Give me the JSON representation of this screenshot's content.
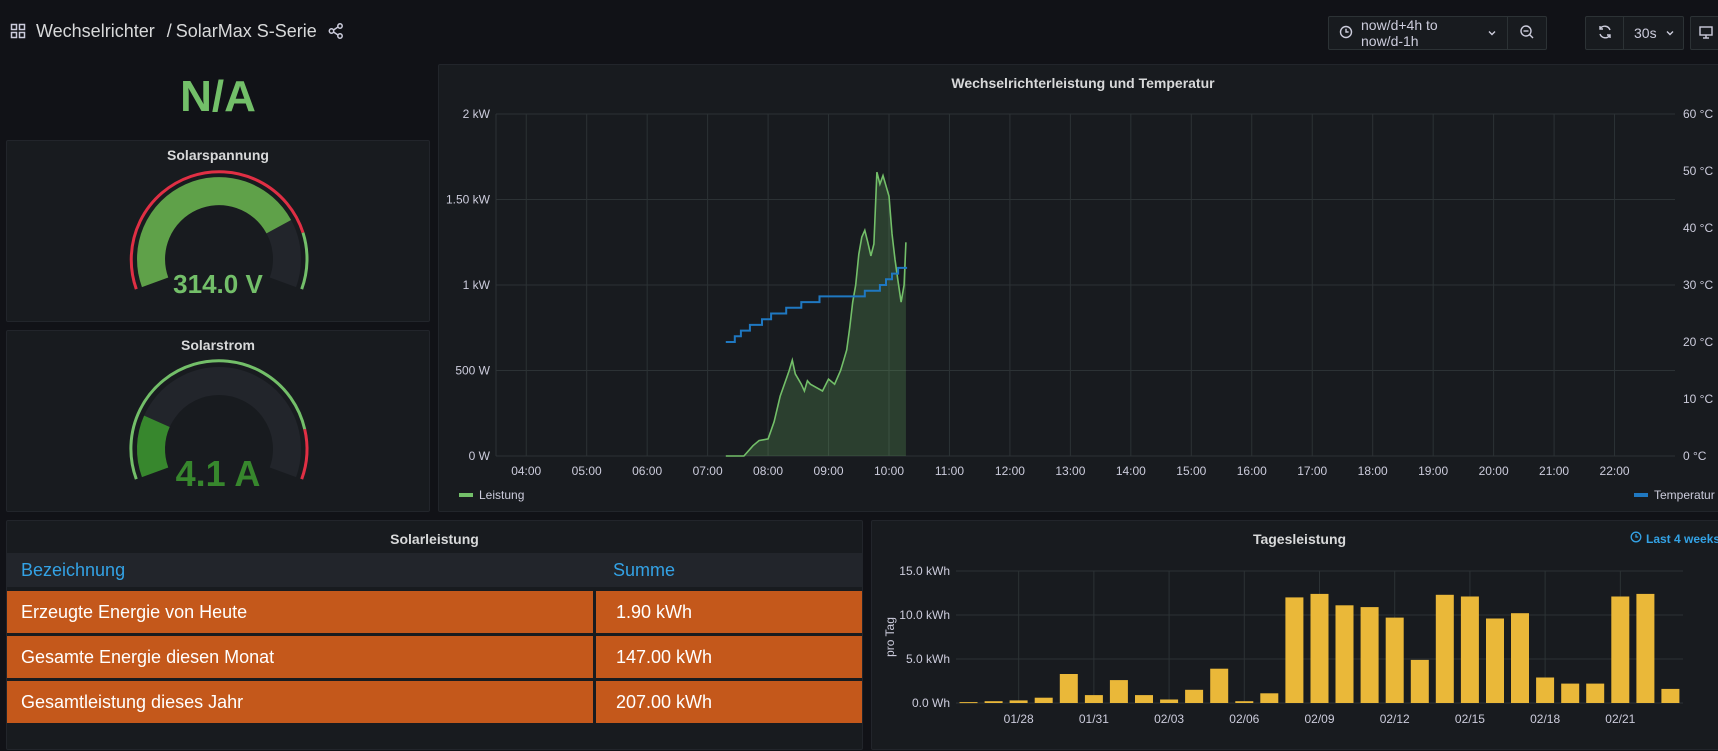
{
  "header": {
    "folder": "Wechselrichter",
    "title": "SolarMax S-Serie",
    "time_range": "now/d+4h to now/d-1h",
    "refresh_interval": "30s"
  },
  "status_panel": {
    "value": "N/A",
    "color": "#73bf69"
  },
  "voltage_gauge": {
    "title": "Solarspannung",
    "value": "314.0 V",
    "fraction": 0.78,
    "color": "#5fa149"
  },
  "current_gauge": {
    "title": "Solarstrom",
    "value": "4.1 A",
    "fraction": 0.2,
    "color": "#37872d"
  },
  "main_chart": {
    "title": "Wechselrichterleistung und Temperatur",
    "chart_data": {
      "type": "line",
      "x_ticks": [
        "04:00",
        "05:00",
        "06:00",
        "07:00",
        "08:00",
        "09:00",
        "10:00",
        "11:00",
        "12:00",
        "13:00",
        "14:00",
        "15:00",
        "16:00",
        "17:00",
        "18:00",
        "19:00",
        "20:00",
        "21:00",
        "22:00"
      ],
      "y_left_ticks": [
        "0 W",
        "500 W",
        "1 kW",
        "1.50 kW",
        "2 kW"
      ],
      "y_right_ticks": [
        "0 °C",
        "10 °C",
        "20 °C",
        "30 °C",
        "40 °C",
        "50 °C",
        "60 °C"
      ],
      "ylim_left": [
        0,
        2000
      ],
      "ylim_right": [
        0,
        60
      ],
      "xlim_hours": [
        3.5,
        23
      ],
      "series": [
        {
          "name": "Leistung",
          "axis": "left",
          "color": "#73bf69",
          "points": [
            [
              7.3,
              0
            ],
            [
              7.6,
              0
            ],
            [
              7.75,
              60
            ],
            [
              7.85,
              90
            ],
            [
              8.0,
              100
            ],
            [
              8.1,
              200
            ],
            [
              8.2,
              350
            ],
            [
              8.3,
              450
            ],
            [
              8.35,
              500
            ],
            [
              8.4,
              560
            ],
            [
              8.45,
              480
            ],
            [
              8.55,
              420
            ],
            [
              8.6,
              380
            ],
            [
              8.65,
              440
            ],
            [
              8.7,
              420
            ],
            [
              8.8,
              400
            ],
            [
              8.9,
              380
            ],
            [
              9.0,
              450
            ],
            [
              9.1,
              420
            ],
            [
              9.2,
              500
            ],
            [
              9.25,
              560
            ],
            [
              9.3,
              620
            ],
            [
              9.35,
              750
            ],
            [
              9.4,
              900
            ],
            [
              9.45,
              1000
            ],
            [
              9.5,
              1180
            ],
            [
              9.55,
              1280
            ],
            [
              9.6,
              1320
            ],
            [
              9.65,
              1250
            ],
            [
              9.7,
              1170
            ],
            [
              9.75,
              1240
            ],
            [
              9.8,
              1660
            ],
            [
              9.85,
              1590
            ],
            [
              9.9,
              1640
            ],
            [
              9.95,
              1580
            ],
            [
              10.0,
              1520
            ],
            [
              10.05,
              1300
            ],
            [
              10.1,
              1150
            ],
            [
              10.15,
              1020
            ],
            [
              10.2,
              900
            ],
            [
              10.25,
              1000
            ],
            [
              10.28,
              1250
            ]
          ]
        },
        {
          "name": "Temperatur",
          "axis": "right",
          "color": "#1f78c1",
          "points": [
            [
              7.3,
              20
            ],
            [
              7.45,
              21
            ],
            [
              7.55,
              22
            ],
            [
              7.7,
              23
            ],
            [
              7.9,
              24
            ],
            [
              8.05,
              25
            ],
            [
              8.3,
              26
            ],
            [
              8.55,
              27
            ],
            [
              8.85,
              28
            ],
            [
              9.15,
              28
            ],
            [
              9.6,
              29
            ],
            [
              9.85,
              30
            ],
            [
              9.95,
              31
            ],
            [
              10.05,
              32
            ],
            [
              10.15,
              33
            ],
            [
              10.3,
              33
            ]
          ]
        }
      ],
      "legend_left": "Leistung",
      "legend_right": "Temperatur"
    }
  },
  "solar_table": {
    "title": "Solarleistung",
    "headers": [
      "Bezeichnung",
      "Summe"
    ],
    "rows": [
      [
        "Erzeugte Energie von Heute",
        "1.90 kWh"
      ],
      [
        "Gesamte Energie diesen Monat",
        "147.00 kWh"
      ],
      [
        "Gesamtleistung dieses Jahr",
        "207.00 kWh"
      ]
    ]
  },
  "daily_chart": {
    "title": "Tagesleistung",
    "time_info": "Last 4 weeks",
    "chart_data": {
      "type": "bar",
      "ylabel": "pro Tag",
      "ylim": [
        0,
        15
      ],
      "y_ticks": [
        "0.0 Wh",
        "5.0 kWh",
        "10.0 kWh",
        "15.0 kWh"
      ],
      "x_ticks": [
        "01/28",
        "01/31",
        "02/03",
        "02/06",
        "02/09",
        "02/12",
        "02/15",
        "02/18",
        "02/21"
      ],
      "values": [
        0.1,
        0.2,
        0.3,
        0.6,
        3.3,
        0.9,
        2.6,
        0.9,
        0.4,
        1.5,
        3.9,
        0.2,
        1.1,
        12.0,
        12.4,
        11.1,
        10.9,
        9.7,
        4.9,
        12.3,
        12.1,
        9.6,
        10.2,
        2.9,
        2.2,
        2.2,
        12.1,
        12.4,
        1.6
      ],
      "color": "#eab839"
    }
  }
}
